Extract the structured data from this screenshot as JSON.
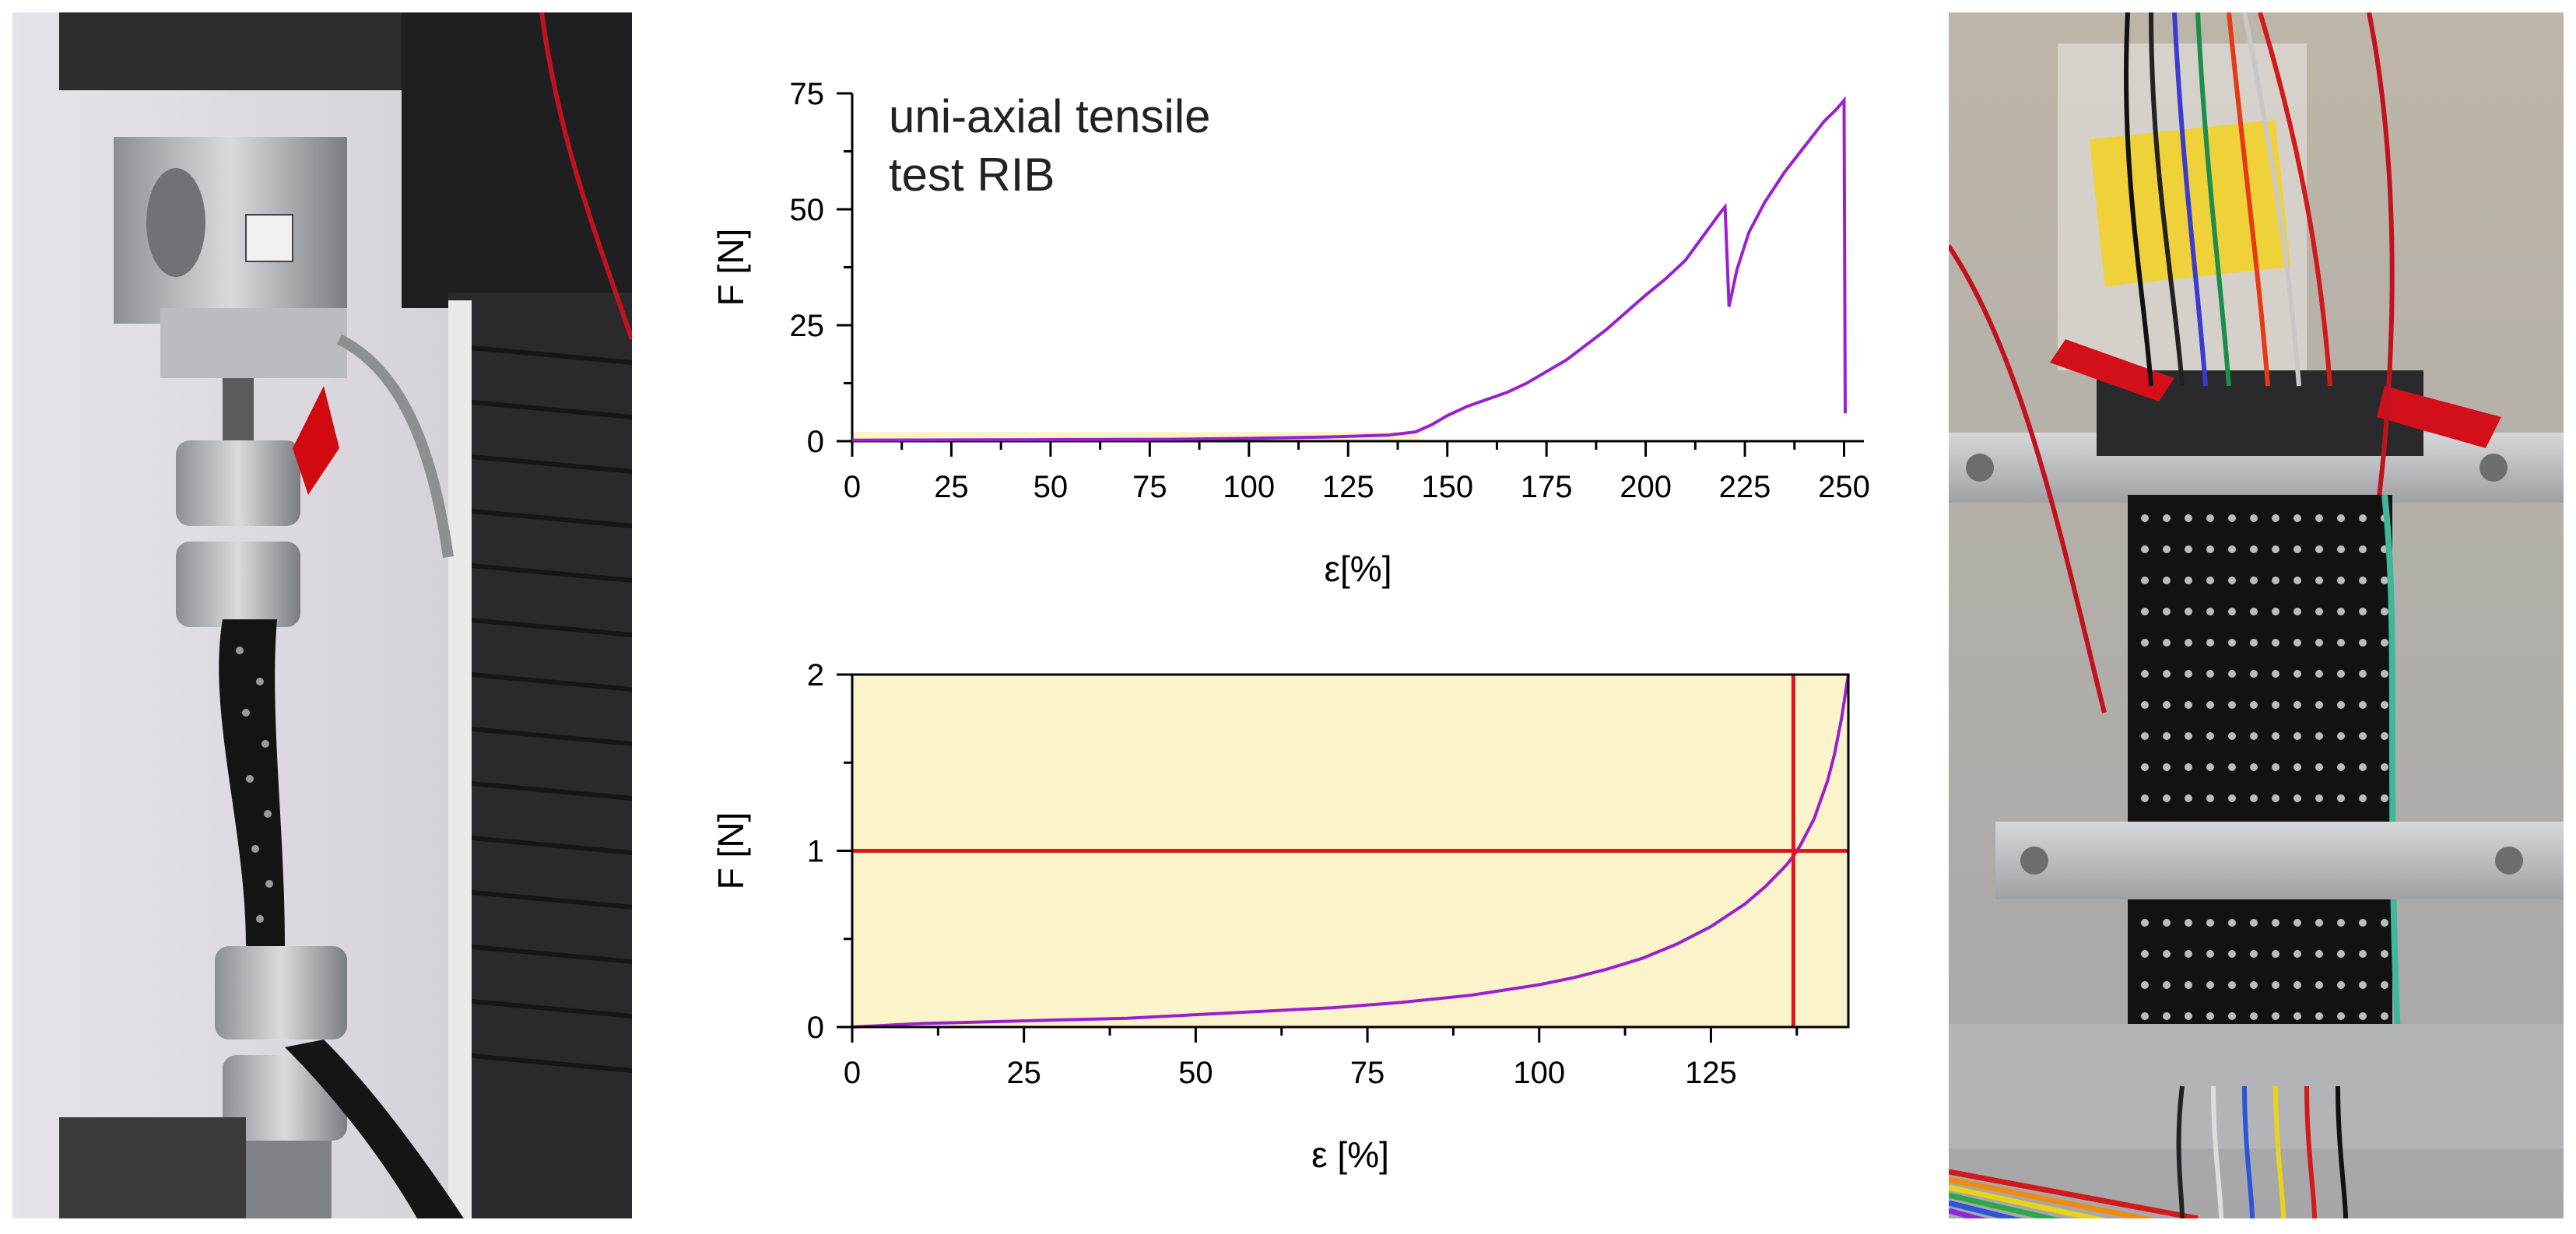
{
  "photos": {
    "left": {
      "kind": "photo",
      "subject": "tensile-testing-machine-with-knitted-sample"
    },
    "right": {
      "kind": "photo",
      "subject": "knitted-sensor-sample-clamped-with-wires"
    }
  },
  "chart_data": [
    {
      "type": "line",
      "id": "top",
      "annotation": [
        "uni-axial tensile",
        "test RIB"
      ],
      "xlabel": "ε[%]",
      "ylabel": "F [N]",
      "xlim": [
        0,
        255
      ],
      "ylim": [
        0,
        75
      ],
      "xticks": [
        0,
        25,
        50,
        75,
        100,
        125,
        150,
        175,
        200,
        225,
        250
      ],
      "yticks": [
        0,
        25,
        50,
        75
      ],
      "frame": "open-axes",
      "line_color": "#9B1FD1",
      "highlight_band": {
        "x": [
          0,
          143
        ],
        "y": [
          0,
          2
        ],
        "color": "#FBF3C9"
      },
      "series": [
        {
          "x": [
            0,
            40,
            80,
            100,
            120,
            135,
            142,
            146,
            150,
            155,
            160,
            165,
            170,
            180,
            190,
            200,
            205,
            210,
            213,
            216,
            219,
            220,
            221,
            223,
            226,
            230,
            235,
            240,
            245,
            248,
            249.5,
            250,
            250.3
          ],
          "y": [
            0.2,
            0.3,
            0.4,
            0.6,
            0.9,
            1.3,
            2,
            3.5,
            5.5,
            7.5,
            9,
            10.5,
            12.5,
            17.5,
            24,
            31.5,
            35,
            39,
            42.5,
            46,
            49.5,
            50.5,
            29,
            37,
            45,
            51.5,
            58,
            63.5,
            69,
            71.5,
            73,
            73.5,
            6
          ]
        }
      ]
    },
    {
      "type": "line",
      "id": "bottom",
      "xlabel": "ε [%]",
      "ylabel": "F [N]",
      "xlim": [
        0,
        145
      ],
      "ylim": [
        0,
        2
      ],
      "xticks": [
        0,
        25,
        50,
        75,
        100,
        125
      ],
      "yticks": [
        0,
        1,
        2
      ],
      "frame": "box",
      "background": "#FBF3C9",
      "line_color": "#9B1FD1",
      "reference_lines": {
        "hline_y": 1,
        "vline_x": 137,
        "color": "#E0141B"
      },
      "series": [
        {
          "x": [
            0,
            10,
            20,
            30,
            40,
            50,
            60,
            70,
            80,
            90,
            100,
            105,
            110,
            115,
            120,
            125,
            130,
            133,
            136,
            137,
            138,
            140,
            142,
            143,
            144,
            145
          ],
          "y": [
            0.0,
            0.02,
            0.03,
            0.04,
            0.05,
            0.07,
            0.09,
            0.11,
            0.14,
            0.18,
            0.24,
            0.28,
            0.33,
            0.39,
            0.47,
            0.57,
            0.7,
            0.8,
            0.92,
            0.97,
            1.03,
            1.18,
            1.4,
            1.55,
            1.75,
            2.0
          ]
        }
      ]
    }
  ]
}
